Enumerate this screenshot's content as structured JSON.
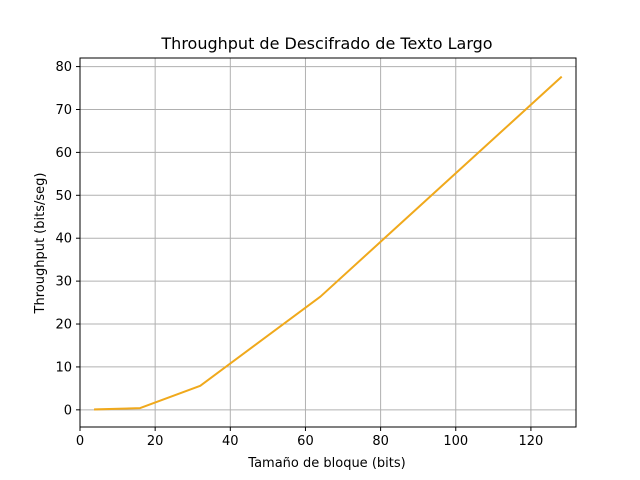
{
  "chart_data": {
    "type": "line",
    "title": "Throughput de Descifrado de Texto Largo",
    "xlabel": "Tamaño de bloque (bits)",
    "ylabel": "Throughput (bits/seg)",
    "xlim": [
      0,
      132
    ],
    "ylim": [
      -4,
      82
    ],
    "x_ticks": [
      0,
      20,
      40,
      60,
      80,
      100,
      120
    ],
    "y_ticks": [
      0,
      10,
      20,
      30,
      40,
      50,
      60,
      70,
      80
    ],
    "grid": true,
    "series": [
      {
        "color": "#f0a91c",
        "x": [
          4,
          16,
          32,
          64,
          128
        ],
        "y": [
          0.1,
          0.4,
          5.6,
          26.4,
          77.5
        ]
      }
    ]
  }
}
